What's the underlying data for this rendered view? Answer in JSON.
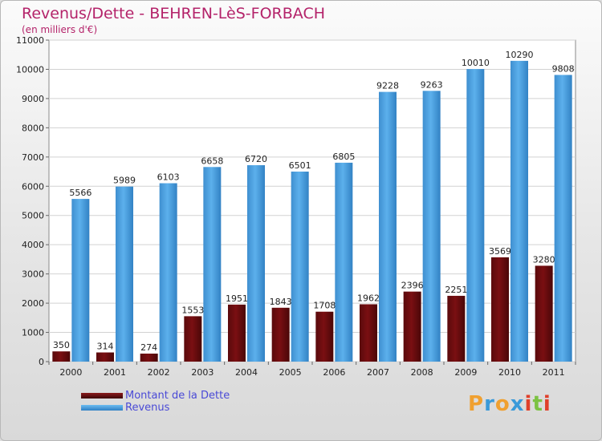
{
  "colors": {
    "dette": "#7a0f12",
    "revenus": "#4a9fe0",
    "title": "#b4236a",
    "legend_text": "#4a4ad6"
  },
  "logo": {
    "letters": [
      "P",
      "r",
      "o",
      "x",
      "i",
      "t",
      "i"
    ],
    "colors": [
      "#f0a030",
      "#3a9ad9",
      "#f0a030",
      "#3a9ad9",
      "#e0402a",
      "#7cc242",
      "#e0402a"
    ]
  },
  "chart_data": {
    "type": "bar",
    "title": "Revenus/Dette - BEHREN-LèS-FORBACH",
    "subtitle": "(en milliers d'€)",
    "categories": [
      "2000",
      "2001",
      "2002",
      "2003",
      "2004",
      "2005",
      "2006",
      "2007",
      "2008",
      "2009",
      "2010",
      "2011"
    ],
    "series": [
      {
        "name": "Montant de la Dette",
        "values": [
          350,
          314,
          274,
          1553,
          1951,
          1843,
          1708,
          1962,
          2396,
          2251,
          3569,
          3280
        ],
        "labels": [
          "350",
          "314",
          "274",
          "1553",
          "1951",
          "1843",
          "1708",
          "1962",
          "2396",
          "2251",
          "3569",
          "3280"
        ]
      },
      {
        "name": "Revenus",
        "values": [
          5566,
          5989,
          6103,
          6658,
          6720,
          6501,
          6805,
          9228,
          9263,
          10010,
          10290,
          9808
        ],
        "labels": [
          "5566",
          "5989",
          "6103",
          "6658",
          "6720",
          "6501",
          "6805",
          "9228",
          "9263",
          "10010",
          "10290",
          "9808"
        ]
      }
    ],
    "ylim": [
      0,
      11000
    ],
    "yticks": [
      0,
      1000,
      2000,
      3000,
      4000,
      5000,
      6000,
      7000,
      8000,
      9000,
      10000,
      11000
    ],
    "xlabel": "",
    "ylabel": "",
    "grid": true,
    "legend_position": "bottom-left"
  }
}
